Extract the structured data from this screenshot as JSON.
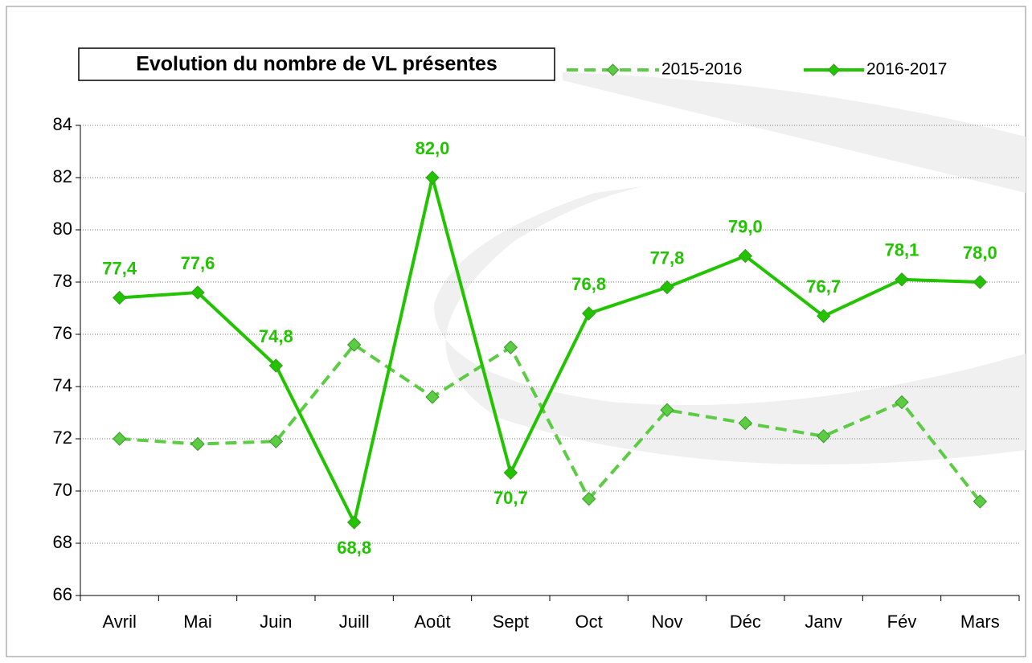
{
  "chart_data": {
    "type": "line",
    "title": "Evolution du nombre de VL présentes",
    "categories": [
      "Avril",
      "Mai",
      "Juin",
      "Juill",
      "Août",
      "Sept",
      "Oct",
      "Nov",
      "Déc",
      "Janv",
      "Fév",
      "Mars"
    ],
    "series": [
      {
        "name": "2015-2016",
        "color": "#5ccc44",
        "dashed": true,
        "values": [
          72.0,
          71.8,
          71.9,
          75.6,
          73.6,
          75.5,
          69.7,
          73.1,
          72.6,
          72.1,
          73.4,
          69.6
        ]
      },
      {
        "name": "2016-2017",
        "color": "#22c400",
        "dashed": false,
        "values": [
          77.4,
          77.6,
          74.8,
          68.8,
          82.0,
          70.7,
          76.8,
          77.8,
          79.0,
          76.7,
          78.1,
          78.0
        ],
        "value_labels": [
          "77,4",
          "77,6",
          "74,8",
          "68,8",
          "82,0",
          "70,7",
          "76,8",
          "77,8",
          "79,0",
          "76,7",
          "78,1",
          "78,0"
        ]
      }
    ],
    "ylim": [
      66,
      84
    ],
    "yticks": [
      66,
      68,
      70,
      72,
      74,
      76,
      78,
      80,
      82,
      84
    ],
    "grid": true,
    "legend": "top"
  }
}
